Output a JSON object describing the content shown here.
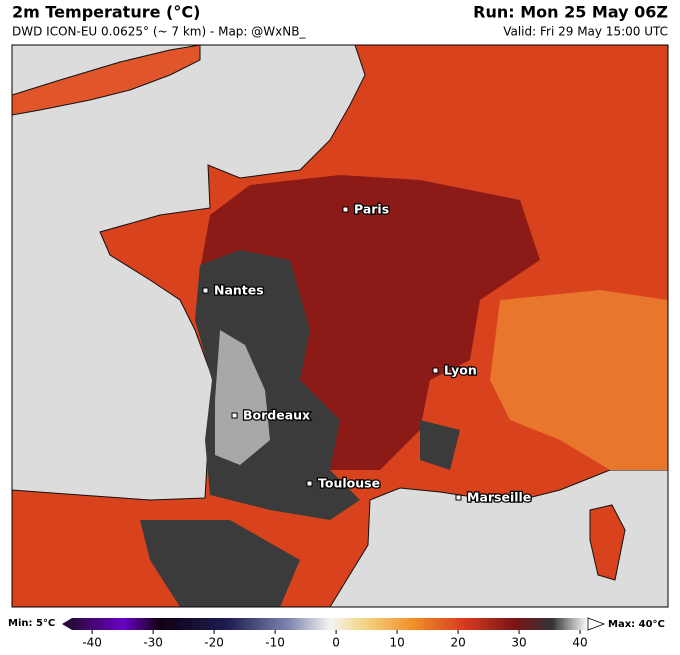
{
  "header": {
    "title": "2m Temperature (°C)",
    "subtitle": "DWD ICON-EU 0.0625° (~ 7 km) - Map: @WxNB_",
    "run": "Run: Mon 25 May 06Z",
    "valid": "Valid: Fri 29 May 15:00 UTC"
  },
  "cities": [
    "Paris",
    "Nantes",
    "Lyon",
    "Bordeaux",
    "Toulouse",
    "Marseille"
  ],
  "colorbar": {
    "min_label": "Min: 5°C",
    "max_label": "Max: 40°C",
    "lim": [
      -43.3,
      41.3
    ],
    "ticks": [
      -40,
      -30,
      -20,
      -10,
      0,
      10,
      20,
      30,
      40
    ]
  }
}
